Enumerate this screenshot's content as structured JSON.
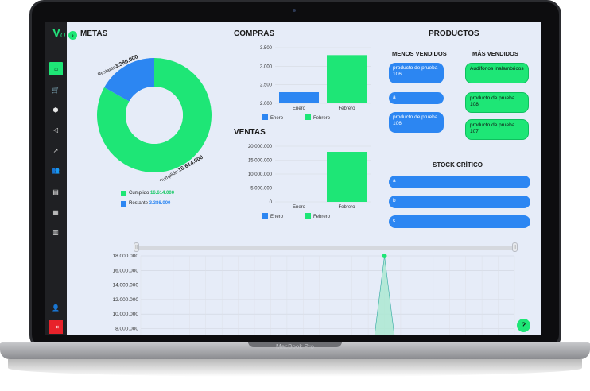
{
  "device_label": "MacBook Pro",
  "app": {
    "logo": "V",
    "logo_sub": "O"
  },
  "colors": {
    "green": "#1ee676",
    "blue": "#2c86f2",
    "sidebar": "#1f2023",
    "logout": "#e8222a"
  },
  "sidebar": {
    "items": [
      {
        "icon": "home-icon",
        "glyph": "⌂"
      },
      {
        "icon": "cart-icon",
        "glyph": "🛒"
      },
      {
        "icon": "box-icon",
        "glyph": "⬢"
      },
      {
        "icon": "megaphone-icon",
        "glyph": "◁"
      },
      {
        "icon": "chart-icon",
        "glyph": "↗"
      },
      {
        "icon": "users-icon",
        "glyph": "👥"
      },
      {
        "icon": "document-icon",
        "glyph": "▤"
      },
      {
        "icon": "calculator-icon",
        "glyph": "▦"
      },
      {
        "icon": "building-icon",
        "glyph": "▥"
      }
    ],
    "profile_glyph": "👤",
    "logout_glyph": "⇥"
  },
  "metas": {
    "title": "METAS",
    "donut_label_restante": "Restante",
    "donut_value_restante": "3.386.000",
    "donut_label_cumplido": "Cumplido:",
    "donut_value_cumplido": "16.614.000",
    "legend": [
      {
        "label": "Cumplido",
        "value": "16.614.000",
        "color": "#1ee676"
      },
      {
        "label": "Restante",
        "value": "3.386.000",
        "color": "#2c86f2"
      }
    ]
  },
  "compras": {
    "title": "COMPRAS"
  },
  "ventas": {
    "title": "VENTAS"
  },
  "productos": {
    "title": "PRODUCTOS",
    "menos_title": "MENOS VENDIDOS",
    "mas_title": "MÁS VENDIDOS",
    "menos": [
      "producto de prueba 106",
      "a",
      "producto de prueba 106"
    ],
    "mas": [
      "Audífonos inalambricos",
      "producto de prueba 108",
      "producto de prueba 107"
    ],
    "stock_title": "STOCK CRÍTICO",
    "stock": [
      "a",
      "b",
      "c"
    ]
  },
  "chart_data": [
    {
      "type": "pie",
      "title": "METAS",
      "labels": [
        "Cumplido",
        "Restante"
      ],
      "values": [
        16614000,
        3386000
      ],
      "colors": [
        "#1ee676",
        "#2c86f2"
      ],
      "donut": true
    },
    {
      "type": "bar",
      "title": "COMPRAS",
      "categories": [
        "Enero",
        "Febrero"
      ],
      "ylim": [
        2000,
        3500
      ],
      "yticks": [
        "3.500",
        "3.000",
        "2.500",
        "2.000"
      ],
      "series": [
        {
          "name": "Enero",
          "values": [
            2300,
            null
          ],
          "color": "#2c86f2"
        },
        {
          "name": "Febrero",
          "values": [
            null,
            3300
          ],
          "color": "#1ee676"
        }
      ]
    },
    {
      "type": "bar",
      "title": "VENTAS",
      "categories": [
        "Enero",
        "Febrero"
      ],
      "ylim": [
        0,
        20000000
      ],
      "yticks": [
        "20.000.000",
        "15.000.000",
        "10.000.000",
        "5.000.000",
        "0"
      ],
      "series": [
        {
          "name": "Enero",
          "values": [
            0,
            null
          ],
          "color": "#2c86f2"
        },
        {
          "name": "Febrero",
          "values": [
            null,
            18000000
          ],
          "color": "#1ee676"
        }
      ]
    },
    {
      "type": "area",
      "yticks": [
        "18.000.000",
        "16.000.000",
        "14.000.000",
        "12.000.000",
        "10.000.000",
        "8.000.000"
      ],
      "ylim": [
        8000000,
        18000000
      ],
      "series": [
        {
          "values": [
            0,
            0,
            0,
            0,
            0,
            0,
            0,
            0,
            0,
            0,
            0,
            0,
            0,
            0,
            0,
            18000000,
            0,
            0,
            0,
            0,
            0,
            0,
            0,
            0
          ],
          "color": "#1ee676"
        }
      ]
    }
  ]
}
